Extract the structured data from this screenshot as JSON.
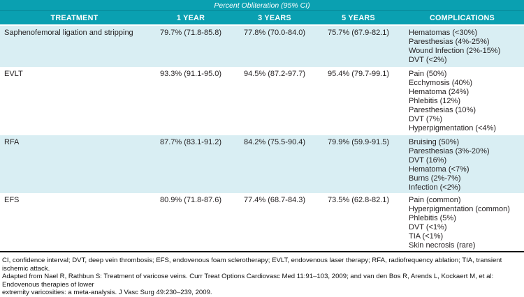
{
  "table": {
    "spanner_title": "Percent Obliteration (95% CI)",
    "column_headers": [
      "TREATMENT",
      "1 YEAR",
      "3 YEARS",
      "5 YEARS",
      "COMPLICATIONS"
    ],
    "rows": [
      {
        "treatment": "Saphenofemoral ligation and stripping",
        "year_1": "79.7% (71.8-85.8)",
        "year_3": "77.8% (70.0-84.0)",
        "year_5": "75.7% (67.9-82.1)",
        "complications": [
          "Hematomas (<30%)",
          "Paresthesias (4%-25%)",
          "Wound Infection (2%-15%)",
          "DVT (<2%)"
        ]
      },
      {
        "treatment": "EVLT",
        "year_1": "93.3% (91.1-95.0)",
        "year_3": "94.5% (87.2-97.7)",
        "year_5": "95.4% (79.7-99.1)",
        "complications": [
          "Pain (50%)",
          "Ecchymosis (40%)",
          "Hematoma (24%)",
          "Phlebitis (12%)",
          "Paresthesias (10%)",
          "DVT (7%)",
          "Hyperpigmentation (<4%)"
        ]
      },
      {
        "treatment": "RFA",
        "year_1": "87.7% (83.1-91.2)",
        "year_3": "84.2% (75.5-90.4)",
        "year_5": "79.9% (59.9-91.5)",
        "complications": [
          "Bruising (50%)",
          "Paresthesias (3%-20%)",
          "DVT (16%)",
          "Hematoma (<7%)",
          "Burns (2%-7%)",
          "Infection (<2%)"
        ]
      },
      {
        "treatment": "EFS",
        "year_1": "80.9% (71.8-87.6)",
        "year_3": "77.4% (68.7-84.3)",
        "year_5": "73.5% (62.8-82.1)",
        "complications": [
          "Pain (common)",
          "Hyperpigmentation (common)",
          "Phlebitis (5%)",
          "DVT (<1%)",
          "TIA (<1%)",
          "Skin necrosis (rare)"
        ]
      }
    ]
  },
  "footnotes": [
    "CI, confidence interval; DVT, deep vein thrombosis; EFS, endovenous foam sclerotherapy; EVLT, endovenous laser therapy; RFA, radiofrequency ablation; TIA, transient ischemic attack.",
    "Adapted from Nael R, Rathbun S: Treatment of varicose veins. Curr Treat Options Cardiovasc Med 11:91–103, 2009; and van den Bos R, Arends L, Kockaert M, et al: Endovenous therapies of lower",
    "extremity varicosities: a meta-analysis. J Vasc Surg 49:230–239, 2009."
  ],
  "colors": {
    "header_teal": "#0aa0b1",
    "row_alt_blue": "#d9eef3",
    "header_text": "#ffffff",
    "body_text": "#231f20"
  }
}
